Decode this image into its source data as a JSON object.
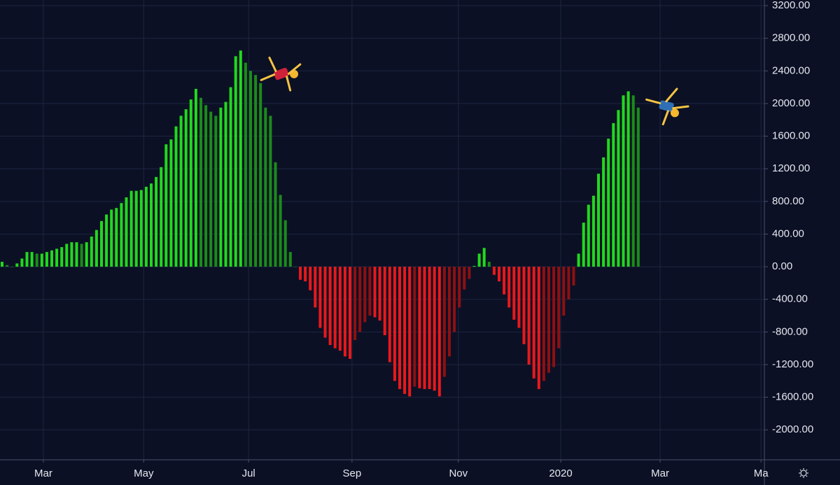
{
  "chart_data": {
    "type": "histogram-bars",
    "values": [
      60,
      20,
      0,
      40,
      100,
      180,
      180,
      160,
      160,
      180,
      200,
      220,
      240,
      280,
      300,
      300,
      280,
      300,
      370,
      450,
      560,
      640,
      700,
      720,
      780,
      850,
      930,
      930,
      940,
      980,
      1020,
      1100,
      1220,
      1500,
      1560,
      1720,
      1850,
      1930,
      2050,
      2180,
      2070,
      1980,
      1900,
      1850,
      1950,
      2020,
      2200,
      2580,
      2650,
      2500,
      2400,
      2350,
      2250,
      1950,
      1850,
      1280,
      880,
      570,
      180,
      0,
      -160,
      -180,
      -290,
      -500,
      -750,
      -870,
      -960,
      -1000,
      -1030,
      -1100,
      -1130,
      -900,
      -800,
      -680,
      -600,
      -620,
      -660,
      -840,
      -1170,
      -1400,
      -1500,
      -1560,
      -1590,
      -1470,
      -1490,
      -1500,
      -1500,
      -1520,
      -1590,
      -1350,
      -1100,
      -800,
      -500,
      -280,
      -150,
      10,
      160,
      230,
      60,
      -100,
      -180,
      -340,
      -500,
      -650,
      -750,
      -950,
      -1200,
      -1370,
      -1500,
      -1400,
      -1300,
      -1230,
      -1000,
      -600,
      -400,
      -230,
      160,
      540,
      760,
      870,
      1140,
      1340,
      1570,
      1760,
      1920,
      2100,
      2150,
      2100,
      1950
    ],
    "colors": {
      "positive_rising": "#22d81e",
      "positive_falling": "#1b8c1a",
      "negative_falling": "#e8191b",
      "negative_rising": "#8e1012"
    },
    "xlim": [
      -0.423,
      153.38
    ],
    "xticks": [
      {
        "value": 8.3,
        "label": "Mar"
      },
      {
        "value": 28.5,
        "label": "May"
      },
      {
        "value": 49.6,
        "label": "Jul"
      },
      {
        "value": 70.4,
        "label": "Sep"
      },
      {
        "value": 91.8,
        "label": "Nov"
      },
      {
        "value": 112.4,
        "label": "2020"
      },
      {
        "value": 132.4,
        "label": "Mar"
      },
      {
        "value": 152.7,
        "label": "Ma"
      }
    ],
    "ylim": [
      -2367,
      3269
    ],
    "yticks": [
      {
        "value": 3200,
        "label": "3200.00"
      },
      {
        "value": 2800,
        "label": "2800.00"
      },
      {
        "value": 2400,
        "label": "2400.00"
      },
      {
        "value": 2000,
        "label": "2000.00"
      },
      {
        "value": 1600,
        "label": "1600.00"
      },
      {
        "value": 1200,
        "label": "1200.00"
      },
      {
        "value": 800,
        "label": "800.00"
      },
      {
        "value": 400,
        "label": "400.00"
      },
      {
        "value": 0,
        "label": "0.00"
      },
      {
        "value": -400,
        "label": "-400.00"
      },
      {
        "value": -800,
        "label": "-800.00"
      },
      {
        "value": -1200,
        "label": "-1200.00"
      },
      {
        "value": -1600,
        "label": "-1600.00"
      },
      {
        "value": -2000,
        "label": "-2000.00"
      }
    ],
    "grid": true
  }
}
